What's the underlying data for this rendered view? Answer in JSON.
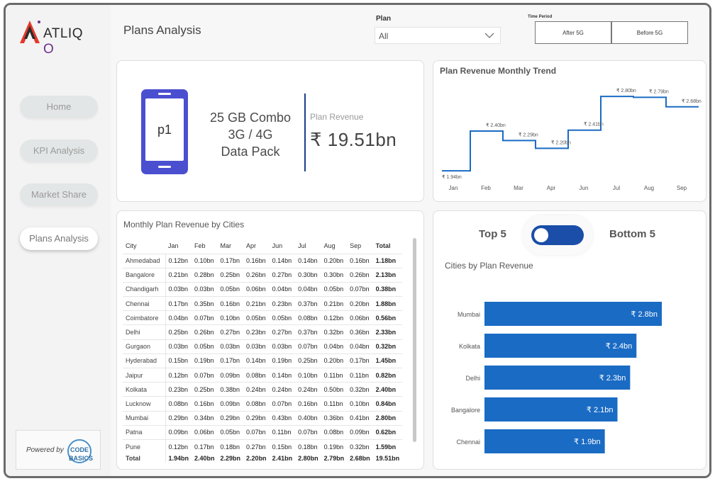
{
  "app": {
    "logo_text": "ATLIQ",
    "logo_suffix": "O"
  },
  "nav": {
    "items": [
      {
        "label": "Home",
        "active": false
      },
      {
        "label": "KPI Analysis",
        "active": false
      },
      {
        "label": "Market Share",
        "active": false
      },
      {
        "label": "Plans Analysis",
        "active": true
      }
    ]
  },
  "powered_by": {
    "label": "Powered by",
    "badge": "CODE BASICS"
  },
  "header": {
    "title": "Plans Analysis"
  },
  "filters": {
    "plan_label": "Plan",
    "plan_value": "All",
    "time_period_label": "Time Period",
    "time_period_options": [
      "After 5G",
      "Before 5G"
    ]
  },
  "plan_card": {
    "phone_label": "p1",
    "plan_name_lines": [
      "25 GB Combo",
      "3G / 4G",
      "Data Pack"
    ],
    "revenue_label": "Plan Revenue",
    "revenue_value": "₹ 19.51bn"
  },
  "trend_chart": {
    "title": "Plan Revenue Monthly Trend"
  },
  "chart_data": [
    {
      "type": "line",
      "title": "Plan Revenue Monthly Trend",
      "step": true,
      "categories": [
        "Jan",
        "Feb",
        "Mar",
        "Apr",
        "Jun",
        "Jul",
        "Aug",
        "Sep"
      ],
      "values": [
        1.94,
        2.4,
        2.29,
        2.2,
        2.41,
        2.8,
        2.79,
        2.68
      ],
      "data_labels": [
        "₹ 1.94bn",
        "₹ 2.40bn",
        "₹ 2.29bn",
        "₹ 2.20bn",
        "₹ 2.41bn",
        "₹ 2.80bn",
        "₹ 2.79bn",
        "₹ 2.68bn"
      ],
      "color": "#1a6bc4"
    },
    {
      "type": "bar",
      "orientation": "horizontal",
      "title": "Cities by Plan Revenue",
      "categories": [
        "Mumbai",
        "Kolkata",
        "Delhi",
        "Bangalore",
        "Chennai"
      ],
      "values": [
        2.8,
        2.4,
        2.3,
        2.1,
        1.9
      ],
      "data_labels": [
        "₹ 2.8bn",
        "₹ 2.4bn",
        "₹ 2.3bn",
        "₹ 2.1bn",
        "₹ 1.9bn"
      ],
      "color": "#1a6bc4"
    }
  ],
  "table": {
    "title": "Monthly Plan Revenue by Cities",
    "columns": [
      "City",
      "Jan",
      "Feb",
      "Mar",
      "Apr",
      "Jun",
      "Jul",
      "Aug",
      "Sep",
      "Total"
    ],
    "rows": [
      [
        "Ahmedabad",
        "0.12bn",
        "0.10bn",
        "0.17bn",
        "0.16bn",
        "0.14bn",
        "0.14bn",
        "0.20bn",
        "0.16bn",
        "1.18bn"
      ],
      [
        "Bangalore",
        "0.21bn",
        "0.28bn",
        "0.25bn",
        "0.26bn",
        "0.27bn",
        "0.30bn",
        "0.30bn",
        "0.26bn",
        "2.13bn"
      ],
      [
        "Chandigarh",
        "0.03bn",
        "0.03bn",
        "0.05bn",
        "0.06bn",
        "0.04bn",
        "0.04bn",
        "0.05bn",
        "0.07bn",
        "0.38bn"
      ],
      [
        "Chennai",
        "0.17bn",
        "0.35bn",
        "0.16bn",
        "0.21bn",
        "0.23bn",
        "0.37bn",
        "0.21bn",
        "0.20bn",
        "1.88bn"
      ],
      [
        "Coimbatore",
        "0.04bn",
        "0.07bn",
        "0.10bn",
        "0.05bn",
        "0.05bn",
        "0.08bn",
        "0.12bn",
        "0.06bn",
        "0.56bn"
      ],
      [
        "Delhi",
        "0.25bn",
        "0.26bn",
        "0.27bn",
        "0.23bn",
        "0.27bn",
        "0.37bn",
        "0.32bn",
        "0.36bn",
        "2.33bn"
      ],
      [
        "Gurgaon",
        "0.03bn",
        "0.05bn",
        "0.03bn",
        "0.03bn",
        "0.03bn",
        "0.07bn",
        "0.04bn",
        "0.04bn",
        "0.32bn"
      ],
      [
        "Hyderabad",
        "0.15bn",
        "0.19bn",
        "0.17bn",
        "0.14bn",
        "0.19bn",
        "0.25bn",
        "0.20bn",
        "0.17bn",
        "1.45bn"
      ],
      [
        "Jaipur",
        "0.12bn",
        "0.07bn",
        "0.09bn",
        "0.08bn",
        "0.14bn",
        "0.10bn",
        "0.11bn",
        "0.11bn",
        "0.82bn"
      ],
      [
        "Kolkata",
        "0.23bn",
        "0.25bn",
        "0.38bn",
        "0.24bn",
        "0.24bn",
        "0.24bn",
        "0.50bn",
        "0.32bn",
        "2.40bn"
      ],
      [
        "Lucknow",
        "0.08bn",
        "0.16bn",
        "0.09bn",
        "0.08bn",
        "0.07bn",
        "0.16bn",
        "0.11bn",
        "0.10bn",
        "0.84bn"
      ],
      [
        "Mumbai",
        "0.29bn",
        "0.34bn",
        "0.29bn",
        "0.29bn",
        "0.43bn",
        "0.40bn",
        "0.36bn",
        "0.41bn",
        "2.80bn"
      ],
      [
        "Patna",
        "0.09bn",
        "0.06bn",
        "0.05bn",
        "0.07bn",
        "0.11bn",
        "0.07bn",
        "0.08bn",
        "0.09bn",
        "0.62bn"
      ],
      [
        "Pune",
        "0.12bn",
        "0.17bn",
        "0.18bn",
        "0.27bn",
        "0.15bn",
        "0.18bn",
        "0.19bn",
        "0.32bn",
        "1.59bn"
      ]
    ],
    "total": [
      "Total",
      "1.94bn",
      "2.40bn",
      "2.29bn",
      "2.20bn",
      "2.41bn",
      "2.80bn",
      "2.79bn",
      "2.68bn",
      "19.51bn"
    ]
  },
  "cities_card": {
    "top_label": "Top 5",
    "bottom_label": "Bottom 5",
    "chart_title": "Cities by Plan Revenue"
  }
}
